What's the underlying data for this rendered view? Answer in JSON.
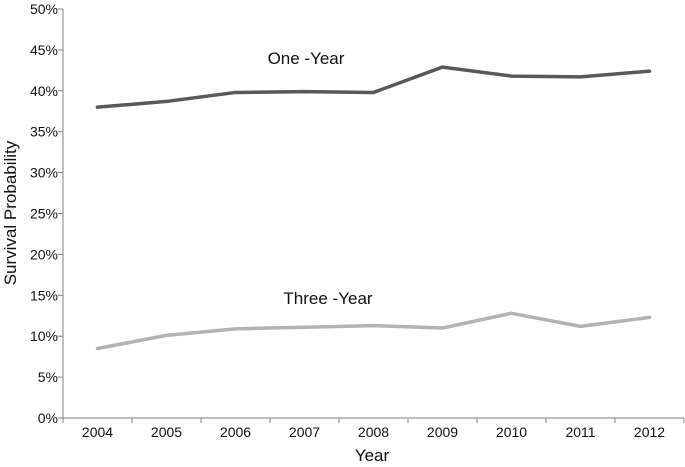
{
  "chart_data": {
    "type": "line",
    "title": "",
    "xlabel": "Year",
    "ylabel": "Survival Probability",
    "categories": [
      "2004",
      "2005",
      "2006",
      "2007",
      "2008",
      "2009",
      "2010",
      "2011",
      "2012"
    ],
    "ylim": [
      0,
      50
    ],
    "yticks": [
      "0%",
      "5%",
      "10%",
      "15%",
      "20%",
      "25%",
      "30%",
      "35%",
      "40%",
      "45%",
      "50%"
    ],
    "grid": false,
    "legend": "none",
    "series": [
      {
        "name": "One -Year",
        "color": "#595959",
        "values": [
          38.0,
          38.7,
          39.8,
          39.9,
          39.8,
          42.9,
          41.8,
          41.7,
          42.4
        ]
      },
      {
        "name": "Three -Year",
        "color": "#b3b3b3",
        "values": [
          8.5,
          10.1,
          10.9,
          11.1,
          11.3,
          11.0,
          12.8,
          11.2,
          12.3
        ]
      }
    ]
  }
}
